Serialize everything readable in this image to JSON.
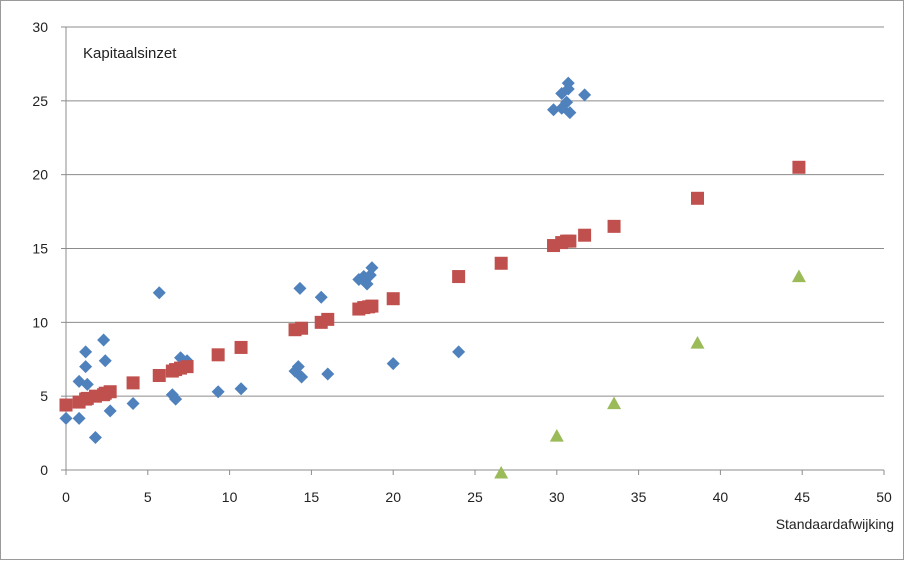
{
  "chart_data": {
    "type": "scatter",
    "title": "Kapitaalsinzet",
    "xlabel": "Standaardafwijking",
    "ylabel": "",
    "xlim": [
      0,
      50
    ],
    "ylim": [
      0,
      30
    ],
    "xticks": [
      0,
      5,
      10,
      15,
      20,
      25,
      30,
      35,
      40,
      45,
      50
    ],
    "yticks": [
      0,
      5,
      10,
      15,
      20,
      25,
      30
    ],
    "grid": "horizontal",
    "legend": "none",
    "series": [
      {
        "marker": "diamond",
        "color": "#4f81bd",
        "points": [
          [
            0.0,
            3.5
          ],
          [
            0.8,
            6.0
          ],
          [
            0.8,
            3.5
          ],
          [
            1.2,
            8.0
          ],
          [
            1.2,
            7.0
          ],
          [
            1.3,
            5.8
          ],
          [
            1.8,
            2.2
          ],
          [
            2.3,
            8.8
          ],
          [
            2.4,
            7.4
          ],
          [
            2.7,
            4.0
          ],
          [
            4.1,
            4.5
          ],
          [
            5.7,
            12.0
          ],
          [
            6.5,
            5.1
          ],
          [
            6.7,
            4.8
          ],
          [
            7.0,
            7.6
          ],
          [
            7.4,
            7.4
          ],
          [
            9.3,
            5.3
          ],
          [
            10.7,
            5.5
          ],
          [
            14.0,
            6.7
          ],
          [
            14.2,
            7.0
          ],
          [
            14.3,
            12.3
          ],
          [
            14.4,
            6.3
          ],
          [
            15.6,
            11.7
          ],
          [
            16.0,
            6.5
          ],
          [
            17.9,
            12.9
          ],
          [
            18.2,
            13.1
          ],
          [
            18.4,
            12.6
          ],
          [
            18.6,
            13.2
          ],
          [
            18.7,
            13.7
          ],
          [
            20.0,
            7.2
          ],
          [
            24.0,
            8.0
          ],
          [
            29.8,
            24.4
          ],
          [
            30.3,
            24.5
          ],
          [
            30.3,
            25.5
          ],
          [
            30.6,
            24.9
          ],
          [
            30.7,
            25.8
          ],
          [
            30.7,
            26.2
          ],
          [
            30.8,
            24.2
          ],
          [
            31.7,
            25.4
          ]
        ]
      },
      {
        "marker": "square",
        "color": "#c0504d",
        "points": [
          [
            0.0,
            4.4
          ],
          [
            0.8,
            4.6
          ],
          [
            1.2,
            4.8
          ],
          [
            1.3,
            4.85
          ],
          [
            1.8,
            5.0
          ],
          [
            2.3,
            5.1
          ],
          [
            2.4,
            5.2
          ],
          [
            2.7,
            5.3
          ],
          [
            4.1,
            5.9
          ],
          [
            5.7,
            6.4
          ],
          [
            6.5,
            6.7
          ],
          [
            6.7,
            6.8
          ],
          [
            7.0,
            6.9
          ],
          [
            7.4,
            7.0
          ],
          [
            9.3,
            7.8
          ],
          [
            10.7,
            8.3
          ],
          [
            14.0,
            9.5
          ],
          [
            14.4,
            9.6
          ],
          [
            15.6,
            10.0
          ],
          [
            16.0,
            10.2
          ],
          [
            17.9,
            10.9
          ],
          [
            18.2,
            11.0
          ],
          [
            18.5,
            11.05
          ],
          [
            18.7,
            11.1
          ],
          [
            20.0,
            11.6
          ],
          [
            24.0,
            13.1
          ],
          [
            26.6,
            14.0
          ],
          [
            29.8,
            15.2
          ],
          [
            30.3,
            15.4
          ],
          [
            30.6,
            15.5
          ],
          [
            30.8,
            15.5
          ],
          [
            31.7,
            15.9
          ],
          [
            33.5,
            16.5
          ],
          [
            38.6,
            18.4
          ],
          [
            44.8,
            20.5
          ]
        ]
      },
      {
        "marker": "triangle",
        "color": "#9bbb59",
        "points": [
          [
            26.6,
            -0.2
          ],
          [
            30.0,
            2.3
          ],
          [
            33.5,
            4.5
          ],
          [
            38.6,
            8.6
          ],
          [
            44.8,
            13.1
          ]
        ]
      }
    ]
  }
}
